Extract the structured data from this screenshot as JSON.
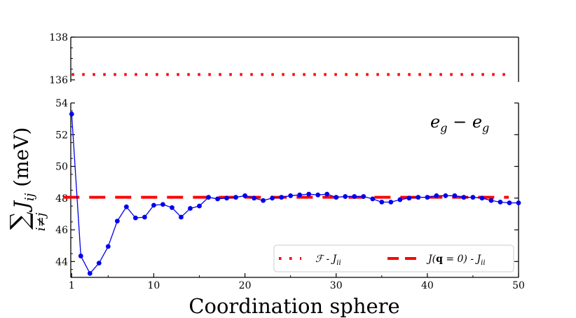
{
  "chart_data": {
    "type": "line",
    "title": "",
    "xlabel": "Coordination sphere",
    "ylabel_sum": "∑",
    "ylabel_sub": "i≠j",
    "ylabel_main": "J",
    "ylabel_ij": "ij",
    "ylabel_unit": " (meV)",
    "annotation": "e",
    "annotation_sub1": "g",
    "annotation_minus": " − e",
    "annotation_sub2": "g",
    "xlim": [
      0.9,
      50
    ],
    "xticks": [
      1,
      10,
      20,
      30,
      40,
      50
    ],
    "xtick_labels": [
      "1",
      "10",
      "20",
      "30",
      "40",
      "50"
    ],
    "upper_panel": {
      "ylim": [
        135.9,
        138
      ],
      "yticks": [
        136,
        138
      ],
      "ytick_labels": [
        "136",
        "138"
      ]
    },
    "lower_panel": {
      "ylim": [
        43,
        54
      ],
      "yticks": [
        44,
        46,
        48,
        50,
        52,
        54
      ],
      "ytick_labels": [
        "44",
        "46",
        "48",
        "50",
        "52",
        "54"
      ]
    },
    "series": [
      {
        "name": "sum_Jij",
        "color": "#0000ee",
        "x": [
          1,
          2,
          3,
          4,
          5,
          6,
          7,
          8,
          9,
          10,
          11,
          12,
          13,
          14,
          15,
          16,
          17,
          18,
          19,
          20,
          21,
          22,
          23,
          24,
          25,
          26,
          27,
          28,
          29,
          30,
          31,
          32,
          33,
          34,
          35,
          36,
          37,
          38,
          39,
          40,
          41,
          42,
          43,
          44,
          45,
          46,
          47,
          48,
          49,
          50
        ],
        "y": [
          53.3,
          44.35,
          43.25,
          43.9,
          44.95,
          46.55,
          47.45,
          46.75,
          46.8,
          47.55,
          47.6,
          47.4,
          46.8,
          47.35,
          47.5,
          48.05,
          47.95,
          48.0,
          48.05,
          48.15,
          48.0,
          47.85,
          48.0,
          48.05,
          48.15,
          48.2,
          48.25,
          48.2,
          48.25,
          48.05,
          48.1,
          48.1,
          48.1,
          47.95,
          47.75,
          47.75,
          47.9,
          48.0,
          48.05,
          48.05,
          48.15,
          48.15,
          48.15,
          48.05,
          48.05,
          48.0,
          47.85,
          47.75,
          47.7,
          47.7
        ]
      },
      {
        "name": "F - J_ii",
        "style": "dotted",
        "color": "#ff0000",
        "value": 136.25,
        "panel": "upper"
      },
      {
        "name": "J(q=0) - J_ii",
        "style": "dashed",
        "color": "#ff0000",
        "value": 48.05,
        "panel": "lower"
      }
    ],
    "legend": {
      "entries": [
        {
          "label_main": "ℱ - J",
          "label_sub": "ii",
          "style": "dotted"
        },
        {
          "label_main": "J(",
          "label_bold": "q",
          "label_rest": " = 0) - J",
          "label_sub": "ii",
          "style": "dashed"
        }
      ],
      "placement": "lower-right"
    }
  }
}
